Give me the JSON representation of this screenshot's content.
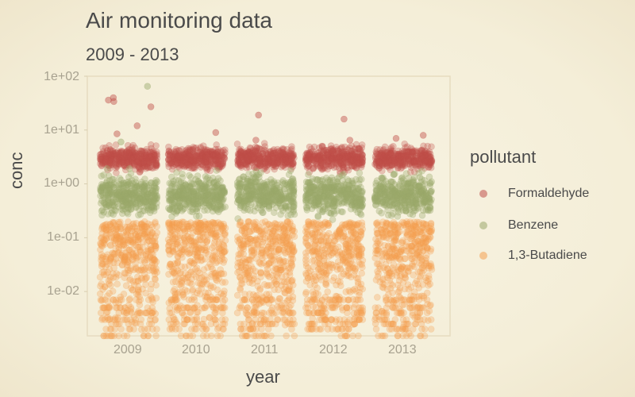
{
  "chart_data": {
    "type": "scatter",
    "title": "Air monitoring data",
    "subtitle": "2009 - 2013",
    "xlabel": "year",
    "ylabel": "conc",
    "y_scale": "log10",
    "ylim": [
      0.0015,
      100
    ],
    "y_ticks": [
      0.01,
      0.1,
      1,
      10,
      100
    ],
    "y_tick_labels": [
      "1e-02",
      "1e-01",
      "1e+00",
      "1e+01",
      "1e+02"
    ],
    "categories": [
      "2009",
      "2010",
      "2011",
      "2012",
      "2013"
    ],
    "grid": false,
    "legend": {
      "title": "pollutant",
      "placement": "right"
    },
    "series": [
      {
        "name": "Formaldehyde",
        "color": "#c0504a",
        "typical_range": [
          1.5,
          6
        ],
        "outliers": [
          {
            "year": "2009",
            "value": 40
          },
          {
            "year": "2009",
            "value": 36
          },
          {
            "year": "2009",
            "value": 34
          },
          {
            "year": "2009",
            "value": 27
          },
          {
            "year": "2009",
            "value": 12
          },
          {
            "year": "2009",
            "value": 8.5
          },
          {
            "year": "2010",
            "value": 9
          },
          {
            "year": "2011",
            "value": 19
          },
          {
            "year": "2011",
            "value": 6.5
          },
          {
            "year": "2012",
            "value": 16
          },
          {
            "year": "2012",
            "value": 6.5
          },
          {
            "year": "2013",
            "value": 8
          },
          {
            "year": "2013",
            "value": 7
          }
        ]
      },
      {
        "name": "Benzene",
        "color": "#9aa86a",
        "typical_range": [
          0.2,
          2
        ],
        "outliers": [
          {
            "year": "2009",
            "value": 65
          },
          {
            "year": "2009",
            "value": 6
          }
        ]
      },
      {
        "name": "1,3-Butadiene",
        "color": "#f4a050",
        "typical_range": [
          0.0015,
          0.2
        ],
        "outliers": []
      }
    ]
  }
}
